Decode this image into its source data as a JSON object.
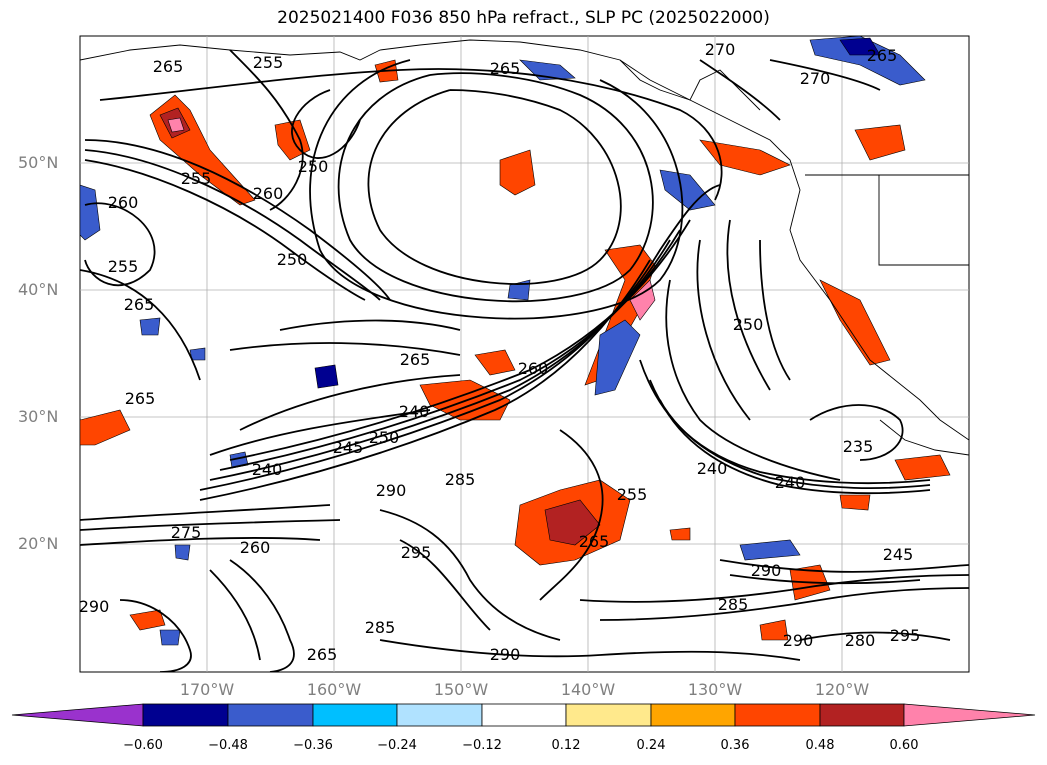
{
  "title": "2025021400 F036 850 hPa refract., SLP PC (2025022000)",
  "map": {
    "projection": "lat-lon",
    "extent": {
      "lon_min": -180,
      "lon_max": -110,
      "lat_min": 10,
      "lat_max": 60
    },
    "lat_ticks": [
      "50°N",
      "40°N",
      "30°N",
      "20°N"
    ],
    "lon_ticks": [
      "170°W",
      "160°W",
      "150°W",
      "140°W",
      "130°W",
      "120°W"
    ],
    "contour_labels": [
      "265",
      "265",
      "270",
      "265",
      "270",
      "250",
      "255",
      "255",
      "260",
      "260",
      "250",
      "250",
      "255",
      "265",
      "265",
      "260",
      "265",
      "240",
      "250",
      "245",
      "240",
      "290",
      "285",
      "275",
      "260",
      "295",
      "265",
      "235",
      "240",
      "240",
      "245",
      "290",
      "285",
      "290",
      "280",
      "295",
      "290",
      "285",
      "290",
      "265",
      "255"
    ]
  },
  "colorbar": {
    "ticks": [
      "−0.60",
      "−0.48",
      "−0.36",
      "−0.24",
      "−0.12",
      "0.12",
      "0.24",
      "0.36",
      "0.48",
      "0.60"
    ],
    "colors": [
      "#9a32cd",
      "#000090",
      "#3a5ccc",
      "#00bfff",
      "#b0e2ff",
      "#ffffff",
      "#ffe98c",
      "#ffa500",
      "#ff4500",
      "#b22222",
      "#ff82ab"
    ]
  }
}
